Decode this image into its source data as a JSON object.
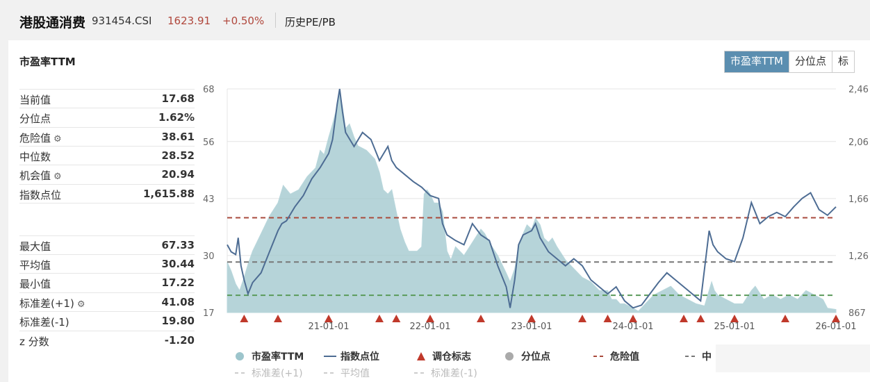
{
  "header": {
    "name": "港股通消费",
    "code": "931454.CSI",
    "price": "1623.91",
    "change": "+0.50%",
    "tab": "历史PE/PB"
  },
  "panel": {
    "title": "市盈率TTM",
    "segments": [
      "市盈率TTM",
      "分位点",
      "标"
    ]
  },
  "stats": [
    {
      "label": "当前值",
      "value": "17.68",
      "gear": false
    },
    {
      "label": "分位点",
      "value": "1.62%",
      "gear": false
    },
    {
      "label": "危险值",
      "value": "38.61",
      "gear": true
    },
    {
      "label": "中位数",
      "value": "28.52",
      "gear": false
    },
    {
      "label": "机会值",
      "value": "20.94",
      "gear": true
    },
    {
      "label": "指数点位",
      "value": "1,615.88",
      "gear": false
    },
    {
      "label": "最大值",
      "value": "67.33",
      "gear": false
    },
    {
      "label": "平均值",
      "value": "30.44",
      "gear": false
    },
    {
      "label": "最小值",
      "value": "17.22",
      "gear": false
    },
    {
      "label": "标准差(+1)",
      "value": "41.08",
      "gear": true
    },
    {
      "label": "标准差(-1)",
      "value": "19.80",
      "gear": false
    },
    {
      "label": "z 分数",
      "value": "-1.20",
      "gear": false
    }
  ],
  "chart_data": {
    "type": "area",
    "x_ticks": [
      "21-01-01",
      "22-01-01",
      "23-01-01",
      "24-01-01",
      "25-01-01",
      "26-01-01"
    ],
    "y_left_ticks": [
      17,
      30,
      43,
      56,
      68
    ],
    "y_right_ticks": [
      "867",
      "1,26",
      "1,66",
      "2,06",
      "2,46"
    ],
    "ylim_left": [
      17,
      68
    ],
    "ylim_right": [
      867,
      2460
    ],
    "x_range": [
      "20-01-01",
      "26-01-01"
    ],
    "reference_lines": [
      {
        "name": "危险值",
        "value": 38.61,
        "color": "#a94a3c",
        "style": "dashed"
      },
      {
        "name": "中位数",
        "value": 28.52,
        "color": "#777777",
        "style": "dashed"
      },
      {
        "name": "机会值",
        "value": 20.94,
        "color": "#5a9a5a",
        "style": "dashed"
      }
    ],
    "series": [
      {
        "name": "市盈率TTM",
        "color": "#9dc5cc",
        "axis": "left",
        "points": [
          [
            "20-01-01",
            28.5
          ],
          [
            "20-01-15",
            26.5
          ],
          [
            "20-02-01",
            23.5
          ],
          [
            "20-02-15",
            22
          ],
          [
            "20-03-01",
            25
          ],
          [
            "20-03-15",
            28
          ],
          [
            "20-04-01",
            31
          ],
          [
            "20-05-01",
            35
          ],
          [
            "20-06-01",
            39
          ],
          [
            "20-07-01",
            42
          ],
          [
            "20-07-20",
            46
          ],
          [
            "20-08-15",
            44
          ],
          [
            "20-09-15",
            45
          ],
          [
            "20-10-15",
            48
          ],
          [
            "20-11-15",
            50
          ],
          [
            "20-12-01",
            54
          ],
          [
            "20-12-15",
            53
          ],
          [
            "21-01-01",
            57
          ],
          [
            "21-01-15",
            60
          ],
          [
            "21-02-01",
            64
          ],
          [
            "21-02-10",
            67.3
          ],
          [
            "21-02-20",
            64
          ],
          [
            "21-03-01",
            59
          ],
          [
            "21-03-15",
            60
          ],
          [
            "21-04-01",
            57
          ],
          [
            "21-04-15",
            55
          ],
          [
            "21-05-15",
            54
          ],
          [
            "21-06-15",
            52
          ],
          [
            "21-07-01",
            49
          ],
          [
            "21-07-15",
            45
          ],
          [
            "21-08-01",
            44
          ],
          [
            "21-08-15",
            45
          ],
          [
            "21-09-01",
            40
          ],
          [
            "21-09-15",
            36
          ],
          [
            "21-10-01",
            33
          ],
          [
            "21-10-15",
            31
          ],
          [
            "21-11-01",
            31
          ],
          [
            "21-11-15",
            31
          ],
          [
            "21-12-01",
            32
          ],
          [
            "21-12-10",
            44
          ],
          [
            "21-12-20",
            45
          ],
          [
            "22-01-01",
            44
          ],
          [
            "22-01-15",
            42
          ],
          [
            "22-02-01",
            42
          ],
          [
            "22-02-15",
            40
          ],
          [
            "22-03-01",
            31
          ],
          [
            "22-03-15",
            29
          ],
          [
            "22-04-01",
            32
          ],
          [
            "22-05-01",
            30
          ],
          [
            "22-06-01",
            33
          ],
          [
            "22-07-01",
            36
          ],
          [
            "22-07-15",
            35
          ],
          [
            "22-08-01",
            33
          ],
          [
            "22-09-01",
            30
          ],
          [
            "22-10-01",
            26
          ],
          [
            "22-10-15",
            24
          ],
          [
            "22-11-01",
            27
          ],
          [
            "22-11-15",
            32
          ],
          [
            "22-12-01",
            35
          ],
          [
            "22-12-15",
            37
          ],
          [
            "23-01-01",
            36
          ],
          [
            "23-01-15",
            38.5
          ],
          [
            "23-02-01",
            37
          ],
          [
            "23-02-15",
            34
          ],
          [
            "23-03-01",
            33
          ],
          [
            "23-03-15",
            34
          ],
          [
            "23-04-01",
            32
          ],
          [
            "23-05-01",
            29
          ],
          [
            "23-06-01",
            27
          ],
          [
            "23-07-01",
            25
          ],
          [
            "23-08-01",
            24
          ],
          [
            "23-09-01",
            22
          ],
          [
            "23-10-01",
            22
          ],
          [
            "23-10-15",
            20
          ],
          [
            "23-11-01",
            20
          ],
          [
            "23-11-15",
            19
          ],
          [
            "23-12-01",
            19
          ],
          [
            "24-01-01",
            18
          ],
          [
            "24-01-20",
            17.3
          ],
          [
            "24-02-15",
            19
          ],
          [
            "24-03-15",
            21
          ],
          [
            "24-04-15",
            22
          ],
          [
            "24-05-15",
            23
          ],
          [
            "24-06-15",
            21
          ],
          [
            "24-07-15",
            20
          ],
          [
            "24-08-15",
            19
          ],
          [
            "24-09-15",
            18.5
          ],
          [
            "24-10-10",
            24
          ],
          [
            "24-10-20",
            22
          ],
          [
            "24-11-01",
            21
          ],
          [
            "24-12-01",
            20
          ],
          [
            "25-01-01",
            19
          ],
          [
            "25-02-01",
            19
          ],
          [
            "25-03-01",
            22
          ],
          [
            "25-03-15",
            23
          ],
          [
            "25-04-15",
            20
          ],
          [
            "25-05-15",
            21
          ],
          [
            "25-06-15",
            20
          ],
          [
            "25-07-15",
            21
          ],
          [
            "25-08-15",
            20
          ],
          [
            "25-09-15",
            22
          ],
          [
            "25-10-15",
            21
          ],
          [
            "25-11-15",
            20
          ],
          [
            "25-12-01",
            18
          ],
          [
            "26-01-01",
            17.7
          ]
        ]
      },
      {
        "name": "指数点位",
        "color": "#4d6c93",
        "axis": "right",
        "points": [
          [
            "20-01-01",
            1350
          ],
          [
            "20-01-15",
            1300
          ],
          [
            "20-02-01",
            1280
          ],
          [
            "20-02-10",
            1400
          ],
          [
            "20-02-20",
            1200
          ],
          [
            "20-03-01",
            1100
          ],
          [
            "20-03-15",
            1000
          ],
          [
            "20-04-01",
            1080
          ],
          [
            "20-05-01",
            1150
          ],
          [
            "20-06-01",
            1300
          ],
          [
            "20-07-01",
            1450
          ],
          [
            "20-07-15",
            1500
          ],
          [
            "20-08-01",
            1520
          ],
          [
            "20-09-01",
            1620
          ],
          [
            "20-10-01",
            1700
          ],
          [
            "20-11-01",
            1820
          ],
          [
            "20-12-01",
            1900
          ],
          [
            "21-01-01",
            2000
          ],
          [
            "21-01-15",
            2100
          ],
          [
            "21-02-01",
            2350
          ],
          [
            "21-02-10",
            2460
          ],
          [
            "21-02-20",
            2300
          ],
          [
            "21-03-01",
            2150
          ],
          [
            "21-04-01",
            2050
          ],
          [
            "21-05-01",
            2150
          ],
          [
            "21-06-01",
            2100
          ],
          [
            "21-07-01",
            1950
          ],
          [
            "21-08-01",
            2050
          ],
          [
            "21-08-15",
            1950
          ],
          [
            "21-09-01",
            1900
          ],
          [
            "21-10-01",
            1850
          ],
          [
            "21-11-01",
            1800
          ],
          [
            "21-12-01",
            1760
          ],
          [
            "22-01-01",
            1700
          ],
          [
            "22-02-01",
            1680
          ],
          [
            "22-02-15",
            1500
          ],
          [
            "22-03-01",
            1420
          ],
          [
            "22-04-01",
            1380
          ],
          [
            "22-05-01",
            1350
          ],
          [
            "22-06-01",
            1500
          ],
          [
            "22-07-01",
            1420
          ],
          [
            "22-08-01",
            1380
          ],
          [
            "22-09-01",
            1200
          ],
          [
            "22-10-01",
            1050
          ],
          [
            "22-10-15",
            900
          ],
          [
            "22-11-01",
            1100
          ],
          [
            "22-11-15",
            1350
          ],
          [
            "22-12-01",
            1420
          ],
          [
            "23-01-01",
            1450
          ],
          [
            "23-01-15",
            1500
          ],
          [
            "23-02-01",
            1400
          ],
          [
            "23-03-01",
            1300
          ],
          [
            "23-04-01",
            1250
          ],
          [
            "23-05-01",
            1200
          ],
          [
            "23-06-01",
            1250
          ],
          [
            "23-07-01",
            1200
          ],
          [
            "23-08-01",
            1100
          ],
          [
            "23-09-01",
            1050
          ],
          [
            "23-10-01",
            1000
          ],
          [
            "23-11-01",
            1050
          ],
          [
            "23-12-01",
            950
          ],
          [
            "24-01-01",
            900
          ],
          [
            "24-02-01",
            920
          ],
          [
            "24-03-01",
            1000
          ],
          [
            "24-04-01",
            1080
          ],
          [
            "24-05-01",
            1150
          ],
          [
            "24-06-01",
            1100
          ],
          [
            "24-07-01",
            1050
          ],
          [
            "24-08-01",
            1000
          ],
          [
            "24-09-01",
            950
          ],
          [
            "24-10-01",
            1450
          ],
          [
            "24-10-15",
            1350
          ],
          [
            "24-11-01",
            1300
          ],
          [
            "24-12-01",
            1250
          ],
          [
            "25-01-01",
            1230
          ],
          [
            "25-02-01",
            1400
          ],
          [
            "25-03-01",
            1650
          ],
          [
            "25-04-01",
            1500
          ],
          [
            "25-05-01",
            1550
          ],
          [
            "25-06-01",
            1580
          ],
          [
            "25-07-01",
            1550
          ],
          [
            "25-08-01",
            1620
          ],
          [
            "25-09-01",
            1680
          ],
          [
            "25-10-01",
            1720
          ],
          [
            "25-11-01",
            1600
          ],
          [
            "25-12-01",
            1560
          ],
          [
            "26-01-01",
            1620
          ]
        ]
      }
    ],
    "rebalance_marks": [
      "20-03-01",
      "20-07-01",
      "21-01-01",
      "21-07-01",
      "21-09-01",
      "22-01-01",
      "22-07-01",
      "23-01-01",
      "23-07-01",
      "23-10-01",
      "24-01-01",
      "24-07-01",
      "24-09-01",
      "25-01-01",
      "25-07-01",
      "26-01-01"
    ],
    "legend": {
      "row1": [
        {
          "label": "市盈率TTM",
          "kind": "dot",
          "color": "#9dc5cc"
        },
        {
          "label": "指数点位",
          "kind": "line",
          "color": "#4d6c93"
        },
        {
          "label": "调仓标志",
          "kind": "triangle",
          "color": "#c0392b"
        },
        {
          "label": "分位点",
          "kind": "dot",
          "color": "#aaaaaa"
        },
        {
          "label": "危险值",
          "kind": "dash",
          "color": "#a94a3c"
        },
        {
          "label": "中",
          "kind": "dash",
          "color": "#777777"
        }
      ],
      "row2": [
        {
          "label": "标准差(+1)",
          "kind": "dash",
          "color": "#cccccc"
        },
        {
          "label": "平均值",
          "kind": "dash",
          "color": "#cccccc"
        },
        {
          "label": "标准差(-1)",
          "kind": "dash",
          "color": "#cccccc"
        }
      ]
    }
  }
}
